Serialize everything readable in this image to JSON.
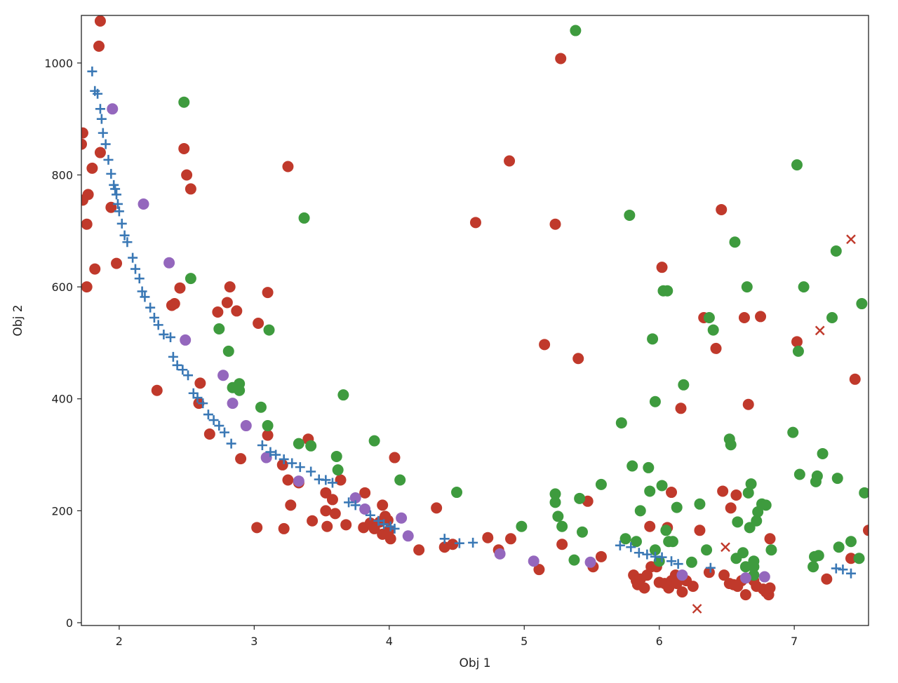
{
  "chart_data": {
    "type": "scatter",
    "title": "",
    "xlabel": "Obj 1",
    "ylabel": "Obj 2",
    "xlim": [
      1.72,
      7.55
    ],
    "ylim": [
      -5,
      1085
    ],
    "xticks": [
      2,
      3,
      4,
      5,
      6,
      7
    ],
    "yticks": [
      0,
      200,
      400,
      600,
      800,
      1000
    ],
    "grid": false,
    "legend": "none",
    "colors": {
      "red": "#c0392b",
      "green": "#3e9b3e",
      "purple": "#9467bd",
      "blue": "#3a78b5"
    },
    "series": [
      {
        "marker": "circle",
        "color_key": "red",
        "points": [
          [
            1.86,
            1075
          ],
          [
            1.85,
            1030
          ],
          [
            1.73,
            875
          ],
          [
            1.72,
            855
          ],
          [
            1.8,
            812
          ],
          [
            1.77,
            765
          ],
          [
            1.73,
            755
          ],
          [
            1.86,
            840
          ],
          [
            1.94,
            742
          ],
          [
            1.76,
            712
          ],
          [
            1.82,
            632
          ],
          [
            1.98,
            642
          ],
          [
            1.76,
            600
          ],
          [
            2.48,
            847
          ],
          [
            2.5,
            800
          ],
          [
            2.53,
            775
          ],
          [
            2.45,
            598
          ],
          [
            2.39,
            567
          ],
          [
            2.41,
            570
          ],
          [
            2.82,
            600
          ],
          [
            2.8,
            572
          ],
          [
            2.73,
            555
          ],
          [
            2.87,
            557
          ],
          [
            3.1,
            590
          ],
          [
            3.03,
            535
          ],
          [
            2.28,
            415
          ],
          [
            2.6,
            428
          ],
          [
            2.59,
            392
          ],
          [
            2.67,
            337
          ],
          [
            2.9,
            293
          ],
          [
            3.02,
            170
          ],
          [
            3.22,
            168
          ],
          [
            3.25,
            815
          ],
          [
            3.1,
            335
          ],
          [
            3.21,
            282
          ],
          [
            3.25,
            255
          ],
          [
            3.27,
            210
          ],
          [
            3.33,
            250
          ],
          [
            3.4,
            328
          ],
          [
            3.43,
            182
          ],
          [
            3.53,
            200
          ],
          [
            3.53,
            232
          ],
          [
            3.58,
            220
          ],
          [
            3.54,
            172
          ],
          [
            3.6,
            195
          ],
          [
            3.64,
            255
          ],
          [
            3.68,
            175
          ],
          [
            3.82,
            232
          ],
          [
            3.81,
            170
          ],
          [
            3.86,
            178
          ],
          [
            3.89,
            168
          ],
          [
            3.95,
            158
          ],
          [
            3.93,
            180
          ],
          [
            3.95,
            210
          ],
          [
            3.97,
            190
          ],
          [
            3.99,
            183
          ],
          [
            4.04,
            295
          ],
          [
            4.01,
            150
          ],
          [
            4.0,
            165
          ],
          [
            4.22,
            130
          ],
          [
            4.35,
            205
          ],
          [
            4.41,
            135
          ],
          [
            4.47,
            140
          ],
          [
            4.64,
            715
          ],
          [
            4.89,
            825
          ],
          [
            4.73,
            152
          ],
          [
            4.81,
            130
          ],
          [
            4.9,
            150
          ],
          [
            5.11,
            95
          ],
          [
            5.15,
            497
          ],
          [
            5.23,
            712
          ],
          [
            5.27,
            1008
          ],
          [
            5.28,
            140
          ],
          [
            5.4,
            472
          ],
          [
            5.47,
            217
          ],
          [
            5.51,
            100
          ],
          [
            5.57,
            118
          ],
          [
            5.81,
            85
          ],
          [
            5.83,
            75
          ],
          [
            5.84,
            68
          ],
          [
            5.86,
            78
          ],
          [
            5.89,
            62
          ],
          [
            5.91,
            85
          ],
          [
            5.93,
            172
          ],
          [
            5.94,
            100
          ],
          [
            5.98,
            100
          ],
          [
            6.0,
            72
          ],
          [
            6.02,
            635
          ],
          [
            6.04,
            70
          ],
          [
            6.06,
            170
          ],
          [
            6.07,
            62
          ],
          [
            6.09,
            233
          ],
          [
            6.09,
            75
          ],
          [
            6.12,
            85
          ],
          [
            6.13,
            70
          ],
          [
            6.16,
            383
          ],
          [
            6.17,
            55
          ],
          [
            6.2,
            75
          ],
          [
            6.25,
            65
          ],
          [
            6.3,
            165
          ],
          [
            6.33,
            545
          ],
          [
            6.37,
            90
          ],
          [
            6.42,
            490
          ],
          [
            6.46,
            738
          ],
          [
            6.47,
            235
          ],
          [
            6.48,
            85
          ],
          [
            6.52,
            70
          ],
          [
            6.53,
            205
          ],
          [
            6.55,
            68
          ],
          [
            6.57,
            228
          ],
          [
            6.58,
            65
          ],
          [
            6.61,
            75
          ],
          [
            6.63,
            545
          ],
          [
            6.64,
            50
          ],
          [
            6.66,
            390
          ],
          [
            6.7,
            75
          ],
          [
            6.72,
            65
          ],
          [
            6.75,
            547
          ],
          [
            6.77,
            60
          ],
          [
            6.79,
            55
          ],
          [
            6.81,
            50
          ],
          [
            6.82,
            150
          ],
          [
            6.82,
            62
          ],
          [
            7.02,
            502
          ],
          [
            7.24,
            78
          ],
          [
            7.42,
            115
          ],
          [
            7.45,
            435
          ],
          [
            7.55,
            165
          ]
        ]
      },
      {
        "marker": "circle",
        "color_key": "green",
        "points": [
          [
            2.48,
            930
          ],
          [
            2.53,
            615
          ],
          [
            2.74,
            525
          ],
          [
            2.81,
            485
          ],
          [
            2.84,
            420
          ],
          [
            2.89,
            427
          ],
          [
            2.89,
            415
          ],
          [
            3.05,
            385
          ],
          [
            3.1,
            352
          ],
          [
            3.11,
            523
          ],
          [
            3.33,
            320
          ],
          [
            3.37,
            723
          ],
          [
            3.42,
            316
          ],
          [
            3.61,
            297
          ],
          [
            3.62,
            273
          ],
          [
            3.66,
            407
          ],
          [
            3.89,
            325
          ],
          [
            4.08,
            255
          ],
          [
            4.5,
            233
          ],
          [
            4.98,
            172
          ],
          [
            5.23,
            230
          ],
          [
            5.23,
            215
          ],
          [
            5.25,
            190
          ],
          [
            5.28,
            172
          ],
          [
            5.37,
            112
          ],
          [
            5.38,
            1058
          ],
          [
            5.41,
            222
          ],
          [
            5.43,
            162
          ],
          [
            5.57,
            247
          ],
          [
            5.72,
            357
          ],
          [
            5.75,
            150
          ],
          [
            5.78,
            728
          ],
          [
            5.8,
            280
          ],
          [
            5.83,
            145
          ],
          [
            5.86,
            200
          ],
          [
            5.92,
            277
          ],
          [
            5.93,
            235
          ],
          [
            5.95,
            507
          ],
          [
            5.97,
            395
          ],
          [
            5.97,
            130
          ],
          [
            6.0,
            110
          ],
          [
            6.02,
            245
          ],
          [
            6.03,
            593
          ],
          [
            6.05,
            165
          ],
          [
            6.06,
            593
          ],
          [
            6.07,
            145
          ],
          [
            6.1,
            145
          ],
          [
            6.13,
            206
          ],
          [
            6.18,
            425
          ],
          [
            6.24,
            108
          ],
          [
            6.3,
            212
          ],
          [
            6.35,
            130
          ],
          [
            6.37,
            545
          ],
          [
            6.4,
            523
          ],
          [
            6.52,
            328
          ],
          [
            6.53,
            318
          ],
          [
            6.56,
            680
          ],
          [
            6.57,
            115
          ],
          [
            6.58,
            180
          ],
          [
            6.62,
            125
          ],
          [
            6.64,
            100
          ],
          [
            6.65,
            600
          ],
          [
            6.66,
            232
          ],
          [
            6.67,
            170
          ],
          [
            6.68,
            248
          ],
          [
            6.7,
            110
          ],
          [
            6.7,
            85
          ],
          [
            6.7,
            100
          ],
          [
            6.72,
            182
          ],
          [
            6.73,
            198
          ],
          [
            6.76,
            212
          ],
          [
            6.79,
            210
          ],
          [
            6.83,
            130
          ],
          [
            6.99,
            340
          ],
          [
            7.02,
            818
          ],
          [
            7.03,
            485
          ],
          [
            7.04,
            265
          ],
          [
            7.07,
            600
          ],
          [
            7.14,
            100
          ],
          [
            7.15,
            118
          ],
          [
            7.16,
            252
          ],
          [
            7.17,
            262
          ],
          [
            7.18,
            120
          ],
          [
            7.21,
            302
          ],
          [
            7.28,
            545
          ],
          [
            7.31,
            664
          ],
          [
            7.32,
            258
          ],
          [
            7.33,
            135
          ],
          [
            7.42,
            145
          ],
          [
            7.48,
            115
          ],
          [
            7.5,
            570
          ],
          [
            7.52,
            232
          ]
        ]
      },
      {
        "marker": "circle",
        "color_key": "purple",
        "points": [
          [
            1.95,
            918
          ],
          [
            2.18,
            748
          ],
          [
            2.37,
            643
          ],
          [
            2.49,
            505
          ],
          [
            2.77,
            442
          ],
          [
            2.84,
            392
          ],
          [
            2.94,
            352
          ],
          [
            3.09,
            295
          ],
          [
            3.33,
            253
          ],
          [
            3.75,
            223
          ],
          [
            3.82,
            203
          ],
          [
            4.09,
            187
          ],
          [
            4.14,
            155
          ],
          [
            4.82,
            123
          ],
          [
            5.07,
            110
          ],
          [
            5.49,
            108
          ],
          [
            6.17,
            85
          ],
          [
            6.64,
            80
          ],
          [
            6.78,
            82
          ]
        ]
      },
      {
        "marker": "plus",
        "color_key": "blue",
        "points": [
          [
            1.8,
            985
          ],
          [
            1.82,
            950
          ],
          [
            1.84,
            945
          ],
          [
            1.86,
            918
          ],
          [
            1.87,
            900
          ],
          [
            1.88,
            875
          ],
          [
            1.9,
            855
          ],
          [
            1.92,
            827
          ],
          [
            1.94,
            802
          ],
          [
            1.96,
            782
          ],
          [
            1.97,
            775
          ],
          [
            1.98,
            765
          ],
          [
            1.99,
            748
          ],
          [
            2.0,
            735
          ],
          [
            2.02,
            713
          ],
          [
            2.04,
            692
          ],
          [
            2.06,
            680
          ],
          [
            2.1,
            652
          ],
          [
            2.12,
            632
          ],
          [
            2.15,
            615
          ],
          [
            2.17,
            592
          ],
          [
            2.19,
            582
          ],
          [
            2.23,
            563
          ],
          [
            2.26,
            545
          ],
          [
            2.29,
            532
          ],
          [
            2.33,
            515
          ],
          [
            2.38,
            510
          ],
          [
            2.4,
            475
          ],
          [
            2.43,
            460
          ],
          [
            2.47,
            452
          ],
          [
            2.51,
            442
          ],
          [
            2.55,
            410
          ],
          [
            2.58,
            402
          ],
          [
            2.62,
            392
          ],
          [
            2.66,
            372
          ],
          [
            2.7,
            362
          ],
          [
            2.74,
            352
          ],
          [
            2.78,
            340
          ],
          [
            2.83,
            320
          ],
          [
            3.06,
            317
          ],
          [
            3.12,
            305
          ],
          [
            3.16,
            300
          ],
          [
            3.22,
            292
          ],
          [
            3.28,
            285
          ],
          [
            3.34,
            278
          ],
          [
            3.42,
            270
          ],
          [
            3.48,
            256
          ],
          [
            3.53,
            255
          ],
          [
            3.58,
            250
          ],
          [
            3.7,
            215
          ],
          [
            3.75,
            210
          ],
          [
            3.86,
            192
          ],
          [
            3.92,
            182
          ],
          [
            3.96,
            176
          ],
          [
            4.01,
            172
          ],
          [
            4.04,
            168
          ],
          [
            4.41,
            150
          ],
          [
            4.52,
            142
          ],
          [
            4.62,
            143
          ],
          [
            5.71,
            138
          ],
          [
            5.79,
            135
          ],
          [
            5.85,
            125
          ],
          [
            5.91,
            122
          ],
          [
            5.97,
            118
          ],
          [
            6.02,
            117
          ],
          [
            6.09,
            110
          ],
          [
            6.14,
            105
          ],
          [
            6.38,
            98
          ],
          [
            7.31,
            97
          ],
          [
            7.36,
            95
          ],
          [
            7.42,
            88
          ]
        ]
      },
      {
        "marker": "x",
        "color_key": "red",
        "points": [
          [
            7.42,
            685
          ],
          [
            7.19,
            522
          ],
          [
            6.49,
            135
          ],
          [
            6.28,
            25
          ]
        ]
      }
    ]
  }
}
